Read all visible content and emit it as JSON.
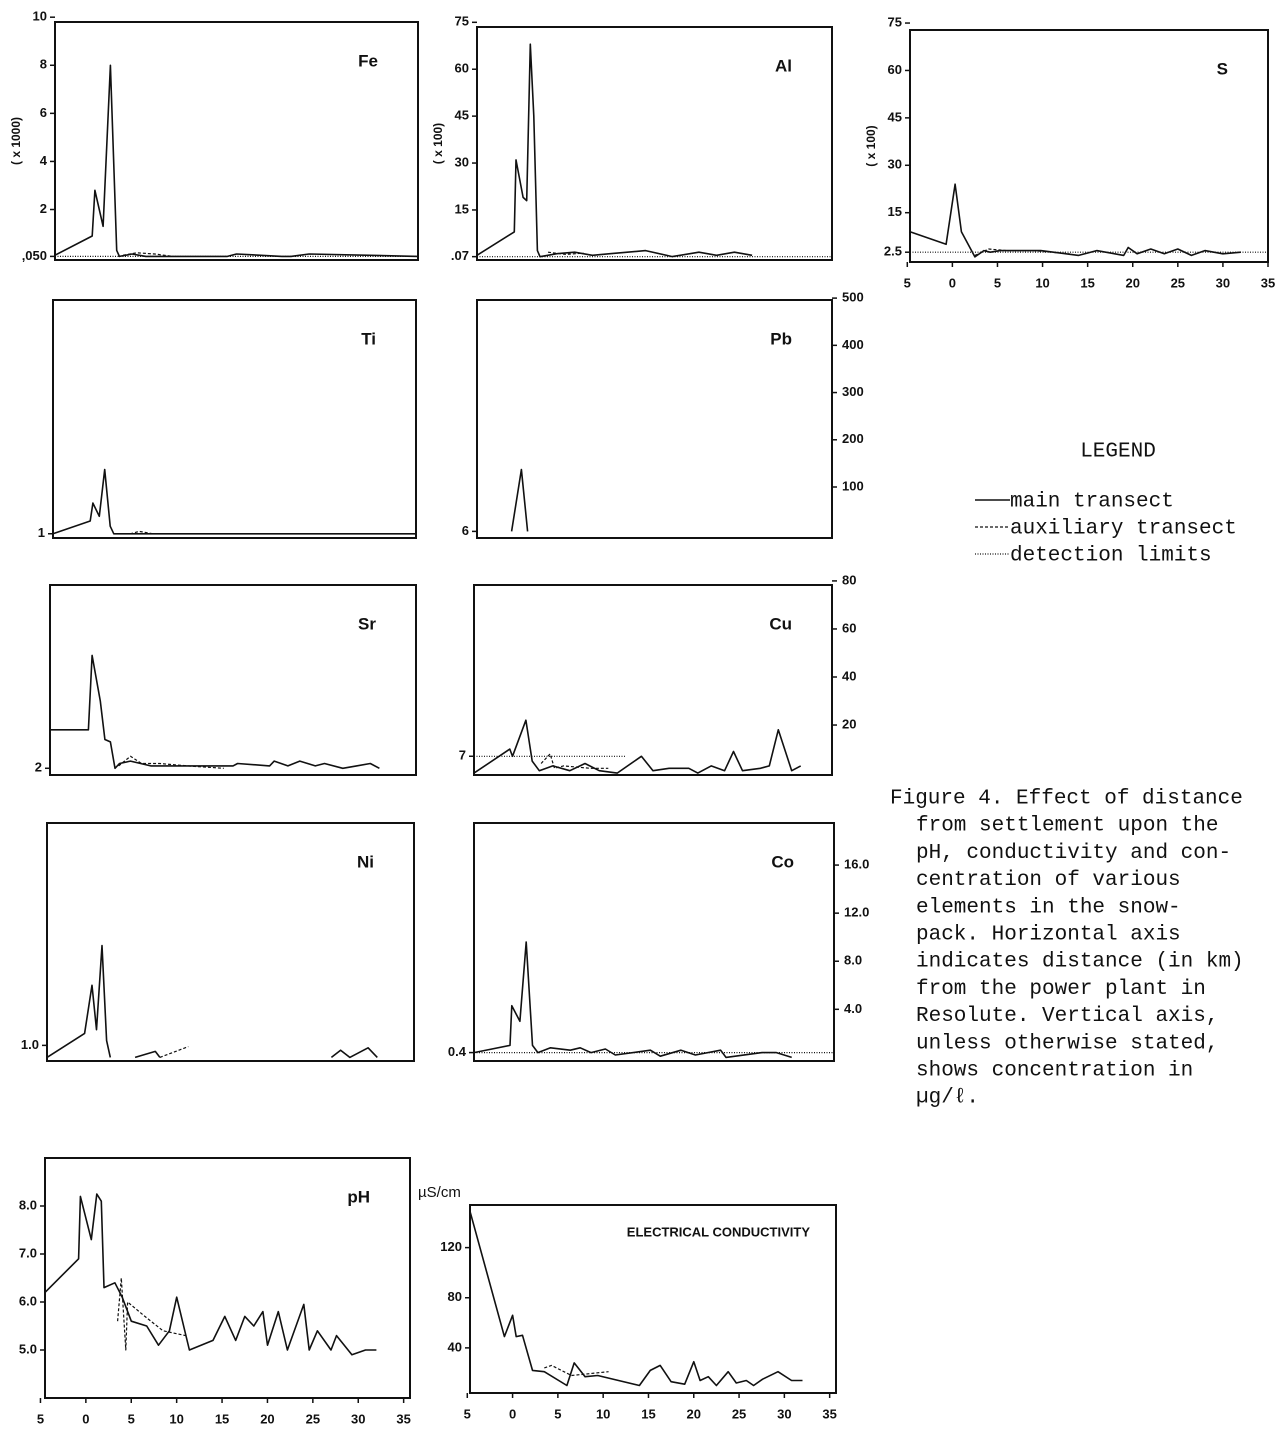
{
  "chart_data": [
    {
      "type": "line",
      "title": "Fe",
      "ylabel": "( x 1000)",
      "xlim": [
        -5,
        35
      ],
      "ylim": [
        -0.1,
        9.8
      ],
      "yticks": [
        {
          "value": 0.05,
          "label": ",050"
        },
        2,
        4,
        6,
        8,
        10
      ],
      "series": [
        {
          "style": "solid",
          "x": [
            -5,
            -0.9,
            -0.6,
            0.3,
            1.1,
            1.8,
            2.1,
            3.5,
            5,
            8,
            14,
            15,
            20,
            21,
            23,
            35
          ],
          "values": [
            0.1,
            0.9,
            2.8,
            1.3,
            8.0,
            0.3,
            0.05,
            0.15,
            0.05,
            0.05,
            0.05,
            0.15,
            0.05,
            0.05,
            0.15,
            0.05
          ]
        },
        {
          "style": "dashed",
          "x": [
            2.5,
            4,
            6,
            8
          ],
          "values": [
            0.1,
            0.2,
            0.15,
            0.05
          ]
        },
        {
          "style": "dotted",
          "x": [
            -5,
            35
          ],
          "values": [
            0.05,
            0.05
          ]
        }
      ]
    },
    {
      "type": "line",
      "title": "Al",
      "ylabel": "( x 100)",
      "xlim": [
        -5,
        35
      ],
      "ylim": [
        -1,
        73.5
      ],
      "yticks": [
        {
          "value": 0.07,
          "label": ".07"
        },
        15,
        30,
        45,
        60,
        75
      ],
      "series": [
        {
          "style": "solid",
          "x": [
            -5,
            -0.8,
            -0.6,
            0.2,
            0.6,
            1.0,
            1.4,
            1.8,
            2.1,
            4,
            6,
            8,
            10,
            14,
            17,
            20,
            22,
            24,
            26
          ],
          "values": [
            0.5,
            8,
            31,
            19,
            18,
            68,
            45,
            2,
            0.07,
            1,
            1.5,
            0.5,
            1,
            2,
            0.1,
            1.5,
            0.5,
            1.5,
            0.5
          ]
        },
        {
          "style": "dashed",
          "x": [
            3,
            5,
            7
          ],
          "values": [
            1.5,
            0.8,
            1.2
          ]
        },
        {
          "style": "dotted",
          "x": [
            -5,
            35
          ],
          "values": [
            0.07,
            0.07
          ]
        }
      ]
    },
    {
      "type": "line",
      "title": "S",
      "ylabel": "( x 100)",
      "xlim": [
        -4.7,
        35
      ],
      "ylim": [
        -0.6,
        72.8
      ],
      "yticks": [
        2.5,
        15,
        30,
        45,
        60,
        75
      ],
      "xticks": [
        {
          "value": -5,
          "label": "5"
        },
        0,
        5,
        10,
        15,
        20,
        25,
        30,
        35
      ],
      "series": [
        {
          "style": "solid",
          "x": [
            -4.7,
            -0.7,
            0.3,
            1,
            2.5,
            3.5,
            4.2,
            5.3,
            6.5,
            9.8,
            14,
            16,
            19,
            19.5,
            20.5,
            22,
            23.5,
            25,
            26.5,
            28,
            30,
            32
          ],
          "values": [
            9,
            5,
            24,
            9,
            1,
            3,
            2.5,
            3,
            3,
            3,
            1.5,
            3,
            1.5,
            4,
            2,
            3.5,
            2,
            3.5,
            1.5,
            3,
            2,
            2.5
          ]
        },
        {
          "style": "dashed",
          "x": [
            2.5,
            4,
            6,
            9,
            13
          ],
          "values": [
            1.5,
            3.5,
            3,
            3,
            2
          ]
        },
        {
          "style": "dotted",
          "x": [
            -4.7,
            35
          ],
          "values": [
            2.5,
            2.5
          ]
        }
      ]
    },
    {
      "type": "line",
      "title": "Ti",
      "xlim": [
        -5,
        35
      ],
      "ylim": [
        -8,
        496
      ],
      "yticks": [
        1
      ],
      "series": [
        {
          "style": "solid",
          "x": [
            -5,
            -0.9,
            -0.6,
            0.1,
            0.7,
            1.3,
            1.7,
            35
          ],
          "values": [
            1,
            28,
            66,
            38,
            137,
            17,
            1,
            1
          ]
        },
        {
          "style": "dashed",
          "x": [
            3.5,
            4.5,
            6
          ],
          "values": [
            1,
            6,
            1
          ]
        }
      ]
    },
    {
      "type": "line",
      "title": "Pb",
      "xlim": [
        -5,
        35
      ],
      "ylim": [
        -8,
        496
      ],
      "y2lim": [
        -8,
        496
      ],
      "yticks": [
        6
      ],
      "y2ticks": [
        100,
        200,
        300,
        400,
        500
      ],
      "series": [
        {
          "style": "solid",
          "x": [
            -1.1,
            0,
            0.7
          ],
          "values": [
            6,
            137,
            6
          ]
        }
      ]
    },
    {
      "type": "line",
      "title": "Sr",
      "xlim": [
        -5,
        35
      ],
      "ylim": [
        -0.8,
        78.3
      ],
      "yticks": [
        2
      ],
      "series": [
        {
          "style": "solid",
          "x": [
            -5,
            -0.8,
            -0.4,
            0.5,
            1,
            1.6,
            2.1,
            2.6,
            3.8,
            6,
            9,
            15,
            15.5,
            19,
            19.5,
            21,
            22.3,
            24,
            25,
            27,
            28.5,
            30,
            31
          ],
          "values": [
            18,
            18,
            49,
            30,
            14,
            13,
            2,
            4,
            5,
            3,
            3,
            3,
            4,
            3,
            5,
            3,
            5,
            3,
            4,
            2,
            3,
            4,
            2
          ]
        },
        {
          "style": "dashed",
          "x": [
            2.5,
            3.8,
            5,
            7,
            10,
            14
          ],
          "values": [
            3,
            7,
            4,
            4,
            3,
            2
          ]
        }
      ]
    },
    {
      "type": "line",
      "title": "Cu",
      "xlim": [
        -5,
        35
      ],
      "ylim": [
        -0.8,
        78.3
      ],
      "y2lim": [
        -0.8,
        78.3
      ],
      "yticks": [
        7
      ],
      "y2ticks": [
        20,
        40,
        60,
        80
      ],
      "series": [
        {
          "style": "solid",
          "x": [
            -5,
            -1,
            -0.7,
            0.8,
            1.5,
            2.3,
            3.8,
            5.7,
            7.4,
            9,
            11,
            13.7,
            15,
            16.8,
            19,
            20,
            21.5,
            23,
            24,
            25,
            27,
            28,
            29,
            30.5,
            31.5
          ],
          "values": [
            0,
            10,
            7,
            22,
            5,
            1,
            3,
            1,
            4,
            1,
            0,
            7,
            1,
            2,
            2,
            0,
            3,
            1,
            9,
            1,
            2,
            3,
            18,
            1,
            3
          ]
        },
        {
          "style": "dashed",
          "x": [
            2.5,
            3.5,
            4,
            5,
            8,
            10
          ],
          "values": [
            4,
            8,
            2,
            3,
            2,
            2
          ]
        },
        {
          "style": "dotted",
          "x": [
            -5,
            12
          ],
          "values": [
            7,
            7
          ]
        }
      ]
    },
    {
      "type": "line",
      "title": "Ni",
      "xlim": [
        -5,
        35
      ],
      "ylim": [
        -0.3,
        19.5
      ],
      "yticks": [
        {
          "value": 1,
          "label": "1.0"
        }
      ],
      "series": [
        {
          "style": "solid",
          "x": [
            -5,
            -0.9,
            -0.1,
            0.4,
            1.0,
            1.5,
            1.9,
            3,
            4.6,
            6.8,
            7.3,
            16,
            26,
            27,
            28,
            30,
            31
          ],
          "values": [
            0,
            2,
            6,
            2.3,
            9.3,
            1.4,
            0,
            null,
            0,
            0.5,
            0,
            null,
            0,
            0.6,
            0,
            0.8,
            0
          ]
        },
        {
          "style": "dashed",
          "x": [
            7.3,
            10.4
          ],
          "values": [
            0,
            0.9
          ]
        }
      ]
    },
    {
      "type": "line",
      "title": "Co",
      "xlim": [
        -5,
        35
      ],
      "ylim": [
        -0.3,
        19.5
      ],
      "y2lim": [
        -0.3,
        19.5
      ],
      "yticks": [
        0.4
      ],
      "y2ticks": [
        {
          "value": 4,
          "label": "4.0"
        },
        {
          "value": 8,
          "label": "8.0"
        },
        {
          "value": 12,
          "label": "12.0"
        },
        {
          "value": 16,
          "label": "16.0"
        }
      ],
      "series": [
        {
          "style": "solid",
          "x": [
            -5,
            -1,
            -0.8,
            0.1,
            0.8,
            1.5,
            2.1,
            3.5,
            5.7,
            6.8,
            8,
            9.6,
            10.7,
            14.6,
            15.7,
            18,
            19.6,
            22.4,
            23,
            27,
            28.6,
            30.3
          ],
          "values": [
            0.4,
            1,
            4.3,
            3,
            9.6,
            1,
            0.4,
            0.8,
            0.6,
            0.8,
            0.4,
            0.7,
            0.2,
            0.6,
            0.1,
            0.6,
            0.2,
            0.6,
            0,
            0.4,
            0.4,
            0
          ]
        },
        {
          "style": "dotted",
          "x": [
            -5,
            35
          ],
          "values": [
            0.4,
            0.4
          ]
        }
      ]
    },
    {
      "type": "line",
      "title": "pH",
      "xlim": [
        -4.5,
        35.7
      ],
      "ylim": [
        4,
        9
      ],
      "yticks": [
        {
          "value": 5,
          "label": "5.0"
        },
        {
          "value": 6,
          "label": "6.0"
        },
        {
          "value": 7,
          "label": "7.0"
        },
        {
          "value": 8,
          "label": "8.0"
        }
      ],
      "xticks": [
        {
          "value": -5,
          "label": "5"
        },
        0,
        5,
        10,
        15,
        20,
        25,
        30,
        35
      ],
      "series": [
        {
          "style": "solid",
          "x": [
            -4.5,
            -0.8,
            -0.6,
            0.6,
            1.2,
            1.7,
            2.0,
            3.2,
            4,
            5,
            6.7,
            8,
            9.2,
            10,
            11.4,
            14,
            15.3,
            16.5,
            17.5,
            18.5,
            19.5,
            20,
            21.2,
            22.2,
            24,
            24.6,
            25.5,
            27,
            27.6,
            29.3,
            30.8,
            32
          ],
          "values": [
            6.2,
            6.9,
            8.2,
            7.3,
            8.25,
            8.1,
            6.3,
            6.4,
            6.1,
            5.6,
            5.5,
            5.1,
            5.4,
            6.1,
            5.0,
            5.2,
            5.7,
            5.2,
            5.7,
            5.5,
            5.8,
            5.1,
            5.8,
            5.0,
            5.95,
            5.0,
            5.4,
            5.0,
            5.3,
            4.9,
            5.0,
            5.0
          ]
        },
        {
          "style": "dashed",
          "x": [
            3.5,
            3.9,
            4.4,
            4.6,
            6.5,
            8.5,
            11
          ],
          "values": [
            5.6,
            6.5,
            5.0,
            6.0,
            5.7,
            5.4,
            5.3
          ]
        }
      ]
    },
    {
      "type": "line",
      "title": "ELECTRICAL  CONDUCTIVITY",
      "y_unit": "µS/cm",
      "xlim": [
        -4.7,
        35.7
      ],
      "ylim": [
        4,
        154
      ],
      "yticks": [
        40,
        80,
        120
      ],
      "xticks": [
        {
          "value": -5,
          "label": "5"
        },
        0,
        5,
        10,
        15,
        20,
        25,
        30,
        35
      ],
      "series": [
        {
          "style": "solid",
          "x": [
            -4.7,
            -0.9,
            0,
            0.4,
            1.1,
            2.2,
            3.5,
            6,
            6.8,
            8,
            9.4,
            14,
            15.2,
            16.3,
            17.5,
            19,
            20,
            20.7,
            21.6,
            22.5,
            23.8,
            24.7,
            25.8,
            26.6,
            27.6,
            29.3,
            30.8,
            32
          ],
          "values": [
            149,
            49,
            66,
            49,
            50,
            22,
            21,
            10,
            28,
            17,
            18,
            10,
            22,
            26,
            13,
            11,
            29,
            14,
            17,
            10,
            21,
            12,
            14,
            10,
            15,
            21,
            14,
            14
          ]
        },
        {
          "style": "dashed",
          "x": [
            3.5,
            4.3,
            6.5,
            10.6
          ],
          "values": [
            24,
            26,
            18,
            21
          ]
        }
      ]
    }
  ],
  "legend": {
    "title": "LEGEND",
    "entries": [
      "main transect",
      "auxiliary transect",
      "detection limits"
    ]
  },
  "caption": [
    "Figure 4.  Effect of distance",
    "from settlement upon the",
    "pH, conductivity and con-",
    "centration of various",
    "elements in the snow-",
    "pack.  Horizontal axis",
    "indicates distance (in km)",
    "from the power plant in",
    "Resolute.  Vertical axis,",
    "unless otherwise stated,",
    "shows concentration in",
    "µg/ℓ."
  ]
}
